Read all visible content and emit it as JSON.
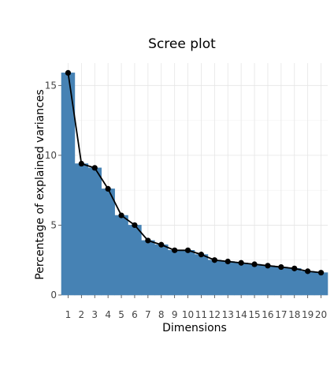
{
  "chart_data": {
    "type": "bar",
    "title": "Scree plot",
    "xlabel": "Dimensions",
    "ylabel": "Percentage of explained variances",
    "categories": [
      "1",
      "2",
      "3",
      "4",
      "5",
      "6",
      "7",
      "8",
      "9",
      "10",
      "11",
      "12",
      "13",
      "14",
      "15",
      "16",
      "17",
      "18",
      "19",
      "20"
    ],
    "values": [
      15.9,
      9.4,
      9.1,
      7.6,
      5.7,
      5.0,
      3.9,
      3.6,
      3.2,
      3.2,
      2.9,
      2.5,
      2.4,
      2.3,
      2.2,
      2.1,
      2.0,
      1.9,
      1.7,
      1.6
    ],
    "ylim": [
      0,
      16.6
    ],
    "yticks": [
      0,
      5,
      10,
      15
    ],
    "grid": true,
    "bar_color": "#4682B4",
    "line_color": "#000000",
    "point_color": "#000000",
    "legend": "none"
  }
}
